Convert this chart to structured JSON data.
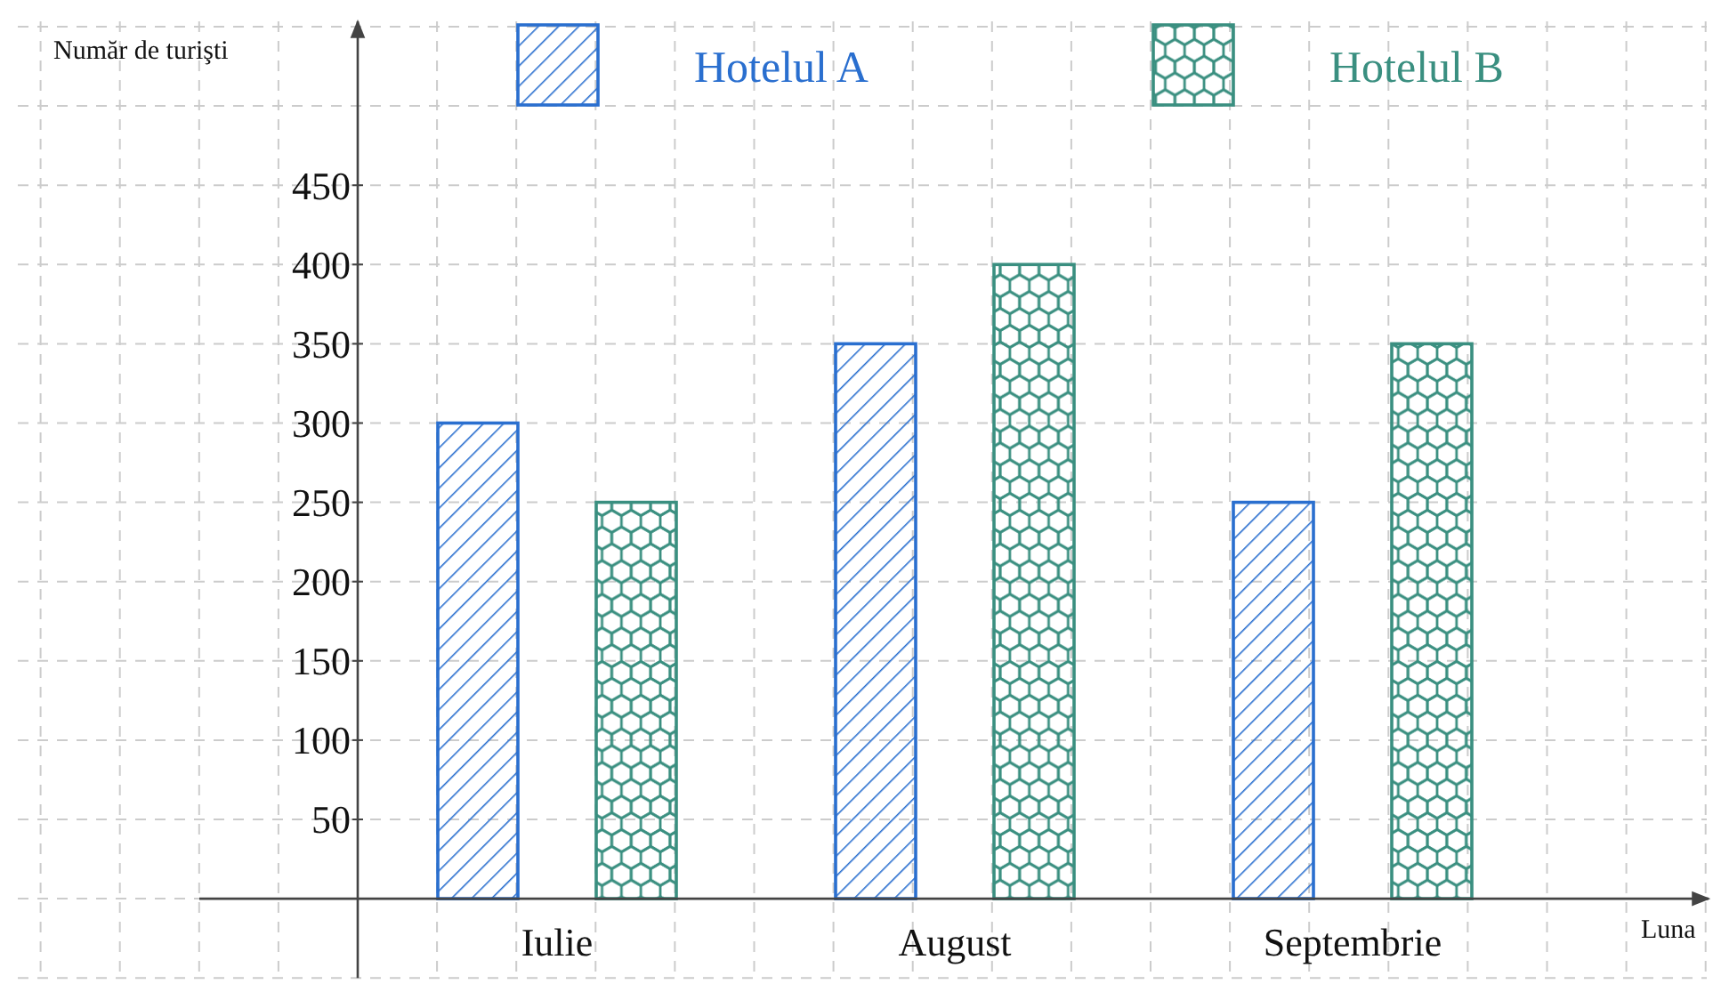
{
  "chart_data": {
    "type": "bar",
    "xlabel": "Luna",
    "ylabel": "Număr de turişti",
    "categories": [
      "Iulie",
      "August",
      "Septembrie"
    ],
    "series": [
      {
        "name": "Hotelul A",
        "color": "#2a6fcf",
        "values": [
          300,
          350,
          250
        ]
      },
      {
        "name": "Hotelul B",
        "color": "#3a8f80",
        "values": [
          250,
          400,
          350
        ]
      }
    ],
    "ylim": [
      -50,
      550
    ],
    "yticks": [
      50,
      100,
      150,
      200,
      250,
      300,
      350,
      400,
      450
    ],
    "grid": true,
    "legend": "top"
  }
}
